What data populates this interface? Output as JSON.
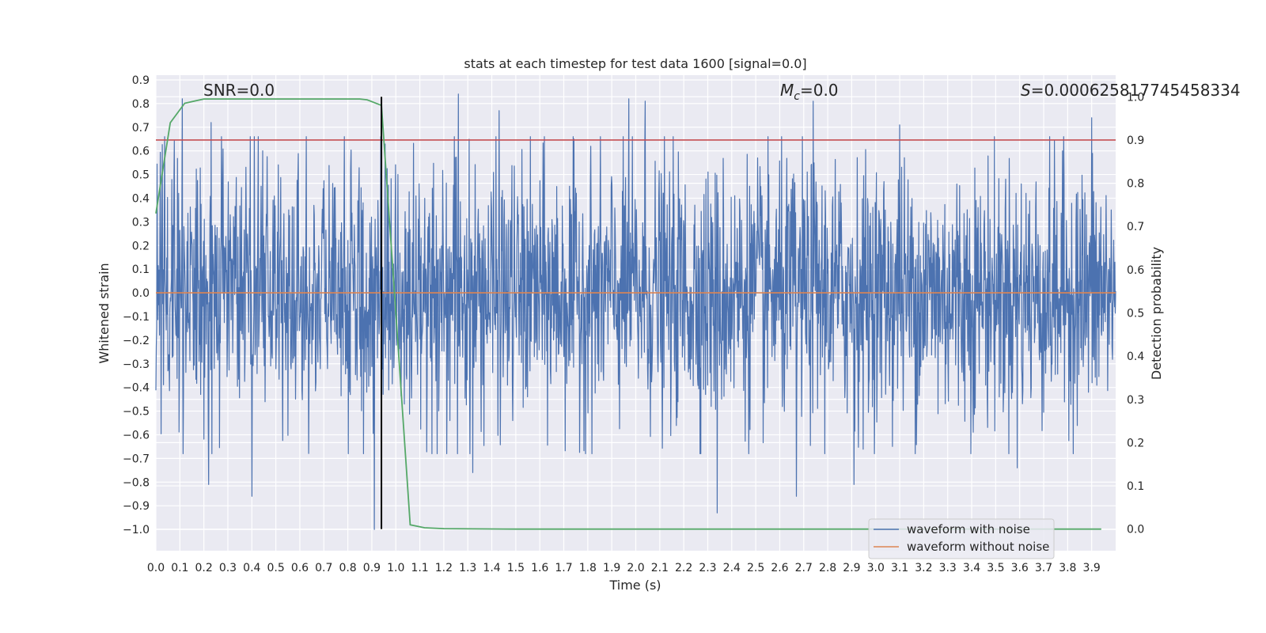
{
  "chart_data": {
    "type": "line",
    "title": "stats at each timestep for test data 1600 [signal=0.0]",
    "xlabel": "Time (s)",
    "ylabel": "Whitened strain",
    "y2label": "Detection probability",
    "xlim": [
      0.0,
      4.0
    ],
    "ylim": [
      -1.09,
      0.92
    ],
    "y2lim": [
      -0.05,
      1.05
    ],
    "x_ticks": [
      "0.0",
      "0.1",
      "0.2",
      "0.3",
      "0.4",
      "0.5",
      "0.6",
      "0.7",
      "0.8",
      "0.9",
      "1.0",
      "1.1",
      "1.2",
      "1.3",
      "1.4",
      "1.5",
      "1.6",
      "1.7",
      "1.8",
      "1.9",
      "2.0",
      "2.1",
      "2.2",
      "2.3",
      "2.4",
      "2.5",
      "2.6",
      "2.7",
      "2.8",
      "2.9",
      "3.0",
      "3.1",
      "3.2",
      "3.3",
      "3.4",
      "3.5",
      "3.6",
      "3.7",
      "3.8",
      "3.9"
    ],
    "y_ticks": [
      "0.9",
      "0.8",
      "0.7",
      "0.6",
      "0.5",
      "0.4",
      "0.3",
      "0.2",
      "0.1",
      "0.0",
      "−0.1",
      "−0.2",
      "−0.3",
      "−0.4",
      "−0.5",
      "−0.6",
      "−0.7",
      "−0.8",
      "−0.9",
      "−1.0"
    ],
    "y2_ticks": [
      "1.0",
      "0.9",
      "0.8",
      "0.7",
      "0.6",
      "0.5",
      "0.4",
      "0.3",
      "0.2",
      "0.1",
      "0.0"
    ],
    "annotations": {
      "snr": "SNR=0.0",
      "mc_symbol": "M",
      "mc_sub": "c",
      "mc_value": "=0.0",
      "s_symbol": "S",
      "s_value": "=0.000625817745458334"
    },
    "series": [
      {
        "name": "waveform with noise",
        "color": "#4c72b0",
        "description_kind": "dense noise",
        "mean": 0.0,
        "std": 0.27,
        "spikes": [
          [
            0.11,
            0.82
          ],
          [
            0.23,
            0.72
          ],
          [
            0.22,
            -0.81
          ],
          [
            0.4,
            -0.86
          ],
          [
            0.91,
            -1.0
          ],
          [
            1.26,
            0.84
          ],
          [
            1.43,
            0.77
          ],
          [
            1.32,
            -0.76
          ],
          [
            1.97,
            0.82
          ],
          [
            2.04,
            0.81
          ],
          [
            2.34,
            -0.93
          ],
          [
            2.74,
            0.81
          ],
          [
            2.67,
            -0.86
          ],
          [
            2.91,
            -0.81
          ],
          [
            3.1,
            0.71
          ],
          [
            3.9,
            0.74
          ],
          [
            3.59,
            -0.74
          ]
        ]
      },
      {
        "name": "waveform without noise",
        "color": "#dd8452",
        "axis": "left",
        "x": [
          0.0,
          4.0
        ],
        "y": [
          0.0,
          0.0
        ]
      },
      {
        "name": "",
        "color": "#55a868",
        "axis": "right",
        "x": [
          0.0,
          0.06,
          0.12,
          0.2,
          0.3,
          0.5,
          0.7,
          0.85,
          0.88,
          0.94,
          1.0,
          1.06,
          1.12,
          1.2,
          1.5,
          2.0,
          2.5,
          3.0,
          3.5,
          3.94
        ],
        "y": [
          0.73,
          0.94,
          0.985,
          0.995,
          0.995,
          0.995,
          0.995,
          0.995,
          0.993,
          0.98,
          0.5,
          0.01,
          0.003,
          0.001,
          0.0,
          0.0,
          0.0,
          0.0,
          0.0,
          0.0
        ]
      }
    ],
    "threshold": {
      "axis": "right",
      "value": 0.9,
      "color": "#c44e52"
    },
    "detection_marker": {
      "x": 0.94,
      "color": "#000000"
    },
    "legend": {
      "placement": "lower right"
    },
    "grid": true
  }
}
